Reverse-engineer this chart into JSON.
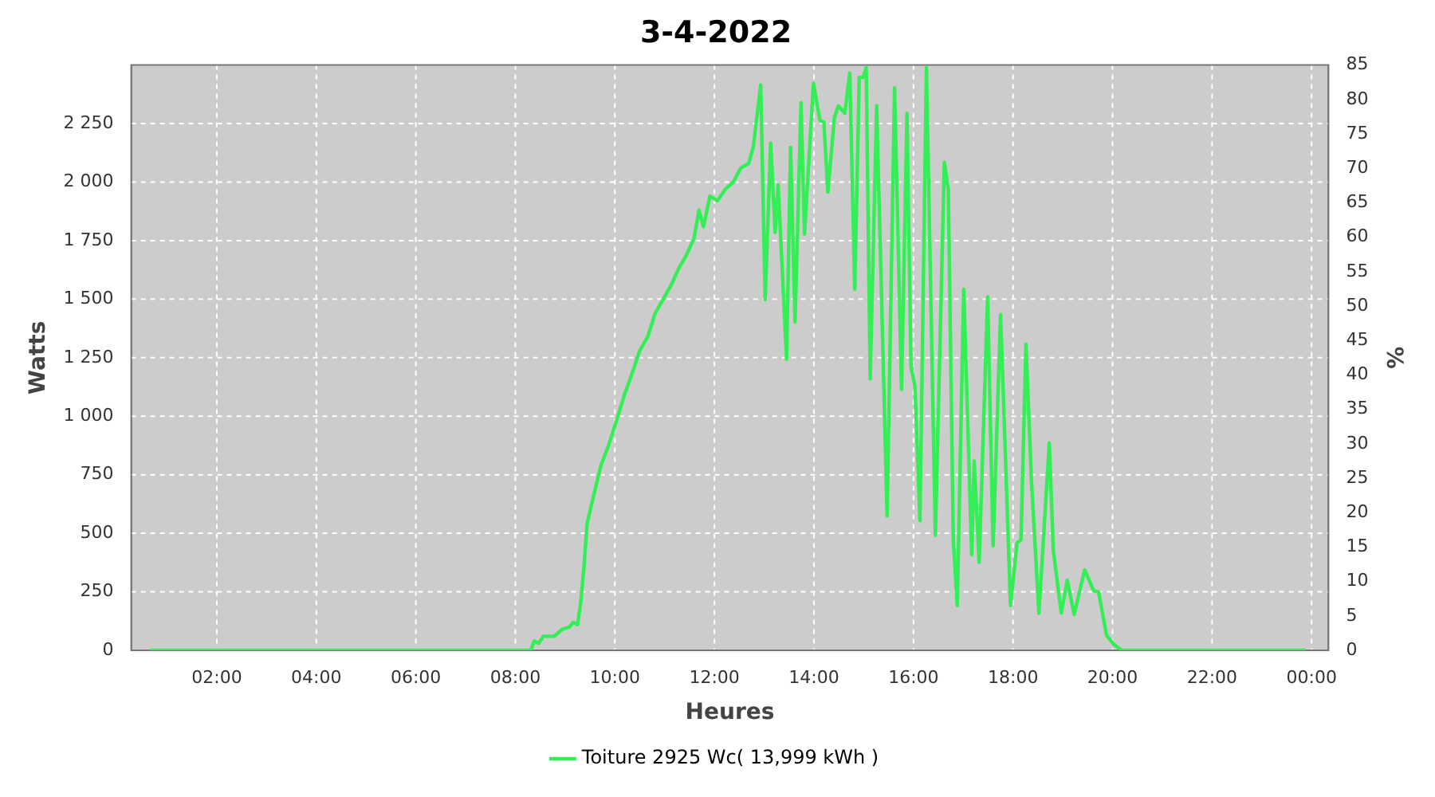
{
  "chart_data": {
    "type": "line",
    "title": "3-4-2022",
    "xlabel": "Heures",
    "ylabel": "Watts",
    "y2label": "%",
    "x": [
      0.66,
      8.31,
      8.38,
      8.47,
      8.56,
      8.78,
      8.94,
      9.09,
      9.16,
      9.25,
      9.31,
      9.38,
      9.44,
      9.56,
      9.72,
      9.88,
      10.03,
      10.19,
      10.34,
      10.5,
      10.66,
      10.81,
      10.97,
      11.13,
      11.28,
      11.44,
      11.59,
      11.69,
      11.78,
      11.91,
      12.06,
      12.22,
      12.38,
      12.53,
      12.69,
      12.78,
      12.93,
      13.02,
      13.13,
      13.22,
      13.28,
      13.45,
      13.53,
      13.62,
      13.74,
      13.81,
      13.99,
      14.12,
      14.2,
      14.28,
      14.41,
      14.49,
      14.62,
      14.72,
      14.82,
      14.91,
      14.99,
      15.05,
      15.13,
      15.26,
      15.47,
      15.62,
      15.76,
      15.87,
      15.95,
      16.03,
      16.13,
      16.26,
      16.44,
      16.62,
      16.7,
      16.8,
      16.88,
      17.01,
      17.17,
      17.22,
      17.32,
      17.49,
      17.6,
      17.75,
      17.95,
      18.08,
      18.16,
      18.26,
      18.37,
      18.52,
      18.73,
      18.81,
      18.97,
      19.09,
      19.23,
      19.44,
      19.62,
      19.72,
      19.88,
      20.03,
      20.19,
      23.88
    ],
    "series": [
      {
        "name": "Toiture 2925 Wc( 13,999 kWh )",
        "color": "#33ee55",
        "values": [
          0,
          0,
          40,
          30,
          60,
          60,
          90,
          100,
          120,
          110,
          200,
          360,
          540,
          650,
          790,
          880,
          980,
          1090,
          1180,
          1280,
          1340,
          1440,
          1500,
          1560,
          1630,
          1690,
          1760,
          1880,
          1810,
          1940,
          1920,
          1970,
          2000,
          2060,
          2080,
          2150,
          2415,
          1498,
          2167,
          1785,
          1988,
          1243,
          2148,
          1402,
          2339,
          1778,
          2422,
          2263,
          2256,
          1957,
          2275,
          2326,
          2294,
          2466,
          1542,
          2447,
          2447,
          2490,
          1160,
          2326,
          574,
          2403,
          1115,
          2294,
          1211,
          1128,
          554,
          2490,
          491,
          2084,
          1969,
          472,
          191,
          1542,
          408,
          809,
          376,
          1510,
          446,
          1434,
          191,
          459,
          472,
          1307,
          727,
          159,
          886,
          427,
          159,
          300,
          153,
          344,
          255,
          249,
          64,
          25,
          0,
          0
        ]
      }
    ],
    "xlim": [
      0.28,
      24.34
    ],
    "xticks": [
      {
        "value": 2,
        "label": "02:00"
      },
      {
        "value": 4,
        "label": "04:00"
      },
      {
        "value": 6,
        "label": "06:00"
      },
      {
        "value": 8,
        "label": "08:00"
      },
      {
        "value": 10,
        "label": "10:00"
      },
      {
        "value": 12,
        "label": "12:00"
      },
      {
        "value": 14,
        "label": "14:00"
      },
      {
        "value": 16,
        "label": "16:00"
      },
      {
        "value": 18,
        "label": "18:00"
      },
      {
        "value": 20,
        "label": "20:00"
      },
      {
        "value": 22,
        "label": "22:00"
      },
      {
        "value": 24,
        "label": "00:00"
      }
    ],
    "ylim": [
      0,
      2500
    ],
    "yticks": [
      0,
      250,
      500,
      750,
      {
        "value": 1000,
        "label": "1 000"
      },
      {
        "value": 1250,
        "label": "1 250"
      },
      {
        "value": 1500,
        "label": "1 500"
      },
      {
        "value": 1750,
        "label": "1 750"
      },
      {
        "value": 2000,
        "label": "2 000"
      },
      {
        "value": 2250,
        "label": "2 250"
      }
    ],
    "y2lim": [
      0,
      85
    ],
    "y2ticks": [
      0,
      5,
      10,
      15,
      20,
      25,
      30,
      35,
      40,
      45,
      50,
      55,
      60,
      65,
      70,
      75,
      80,
      85
    ],
    "grid": true,
    "legend": "bottom",
    "marker": "none",
    "line_style": "solid"
  }
}
